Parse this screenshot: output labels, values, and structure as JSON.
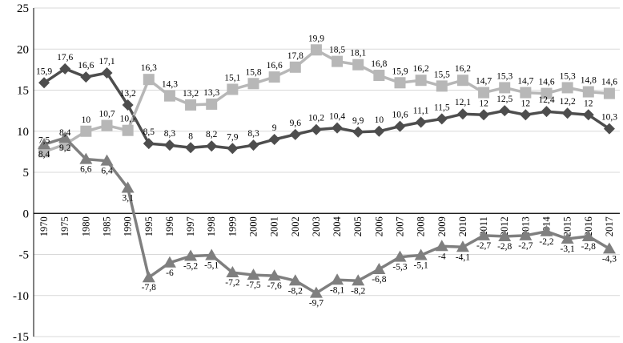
{
  "chart_data": {
    "type": "line",
    "title": "",
    "xlabel": "",
    "ylabel": "",
    "ylim": [
      -15,
      25
    ],
    "yticks": [
      -15,
      -10,
      -5,
      0,
      5,
      10,
      15,
      20,
      25
    ],
    "grid": true,
    "categories": [
      "1970",
      "1975",
      "1980",
      "1985",
      "1990",
      "1995",
      "1996",
      "1997",
      "1998",
      "1999",
      "2000",
      "2001",
      "2002",
      "2003",
      "2004",
      "2005",
      "2006",
      "2007",
      "2008",
      "2009",
      "2010",
      "2011",
      "2012",
      "2013",
      "2014",
      "2015",
      "2016",
      "2017"
    ],
    "series": [
      {
        "marker": "diamond",
        "color": "#4d4d4d",
        "values": [
          15.9,
          17.6,
          16.6,
          17.1,
          13.2,
          8.5,
          8.3,
          8,
          8.2,
          7.9,
          8.3,
          9,
          9.6,
          10.2,
          10.4,
          9.9,
          10,
          10.6,
          11.1,
          11.5,
          12.1,
          12,
          12.5,
          12,
          12.4,
          12.2,
          12,
          10.3
        ],
        "labels": [
          "15,9",
          "17,6",
          "16,6",
          "17,1",
          "13,2",
          "8,5",
          "8,3",
          "8",
          "8,2",
          "7,9",
          "8,3",
          "9",
          "9,6",
          "10,2",
          "10,4",
          "9,9",
          "10",
          "10,6",
          "11,1",
          "11,5",
          "12,1",
          "12",
          "12,5",
          "12",
          "12,4",
          "12,2",
          "12",
          "10,3"
        ]
      },
      {
        "marker": "square",
        "color": "#b7b7b7",
        "values": [
          7.5,
          8.4,
          10,
          10.7,
          10.1,
          16.3,
          14.3,
          13.2,
          13.3,
          15.1,
          15.8,
          16.6,
          17.8,
          19.9,
          18.5,
          18.1,
          16.8,
          15.9,
          16.2,
          15.5,
          16.2,
          14.7,
          15.3,
          14.7,
          14.6,
          15.3,
          14.8,
          14.6
        ],
        "labels": [
          "7,5",
          "8,4",
          "10",
          "10,7",
          "10,1",
          "16,3",
          "14,3",
          "13,2",
          "13,3",
          "15,1",
          "15,8",
          "16,6",
          "17,8",
          "19,9",
          "18,5",
          "18,1",
          "16,8",
          "15,9",
          "16,2",
          "15,5",
          "16,2",
          "14,7",
          "15,3",
          "14,7",
          "14,6",
          "15,3",
          "14,8",
          "14,6"
        ]
      },
      {
        "marker": "triangle",
        "color": "#7f7f7f",
        "values": [
          8.4,
          9.2,
          6.6,
          6.4,
          3.1,
          -7.8,
          -6,
          -5.2,
          -5.1,
          -7.2,
          -7.5,
          -7.6,
          -8.2,
          -9.7,
          -8.1,
          -8.2,
          -6.8,
          -5.3,
          -5.1,
          -4,
          -4.1,
          -2.7,
          -2.8,
          -2.7,
          -2.2,
          -3.1,
          -2.8,
          -4.3
        ],
        "labels": [
          "8,4",
          "9,2",
          "6,6",
          "6,4",
          "3,1",
          "-7,8",
          "-6",
          "-5,2",
          "-5,1",
          "-7,2",
          "-7,5",
          "-7,6",
          "-8,2",
          "-9,7",
          "-8,1",
          "-8,2",
          "-6,8",
          "-5,3",
          "-5,1",
          "-4",
          "-4,1",
          "-2,7",
          "-2,8",
          "-2,7",
          "-2,2",
          "-3,1",
          "-2,8",
          "-4,3"
        ]
      }
    ]
  }
}
